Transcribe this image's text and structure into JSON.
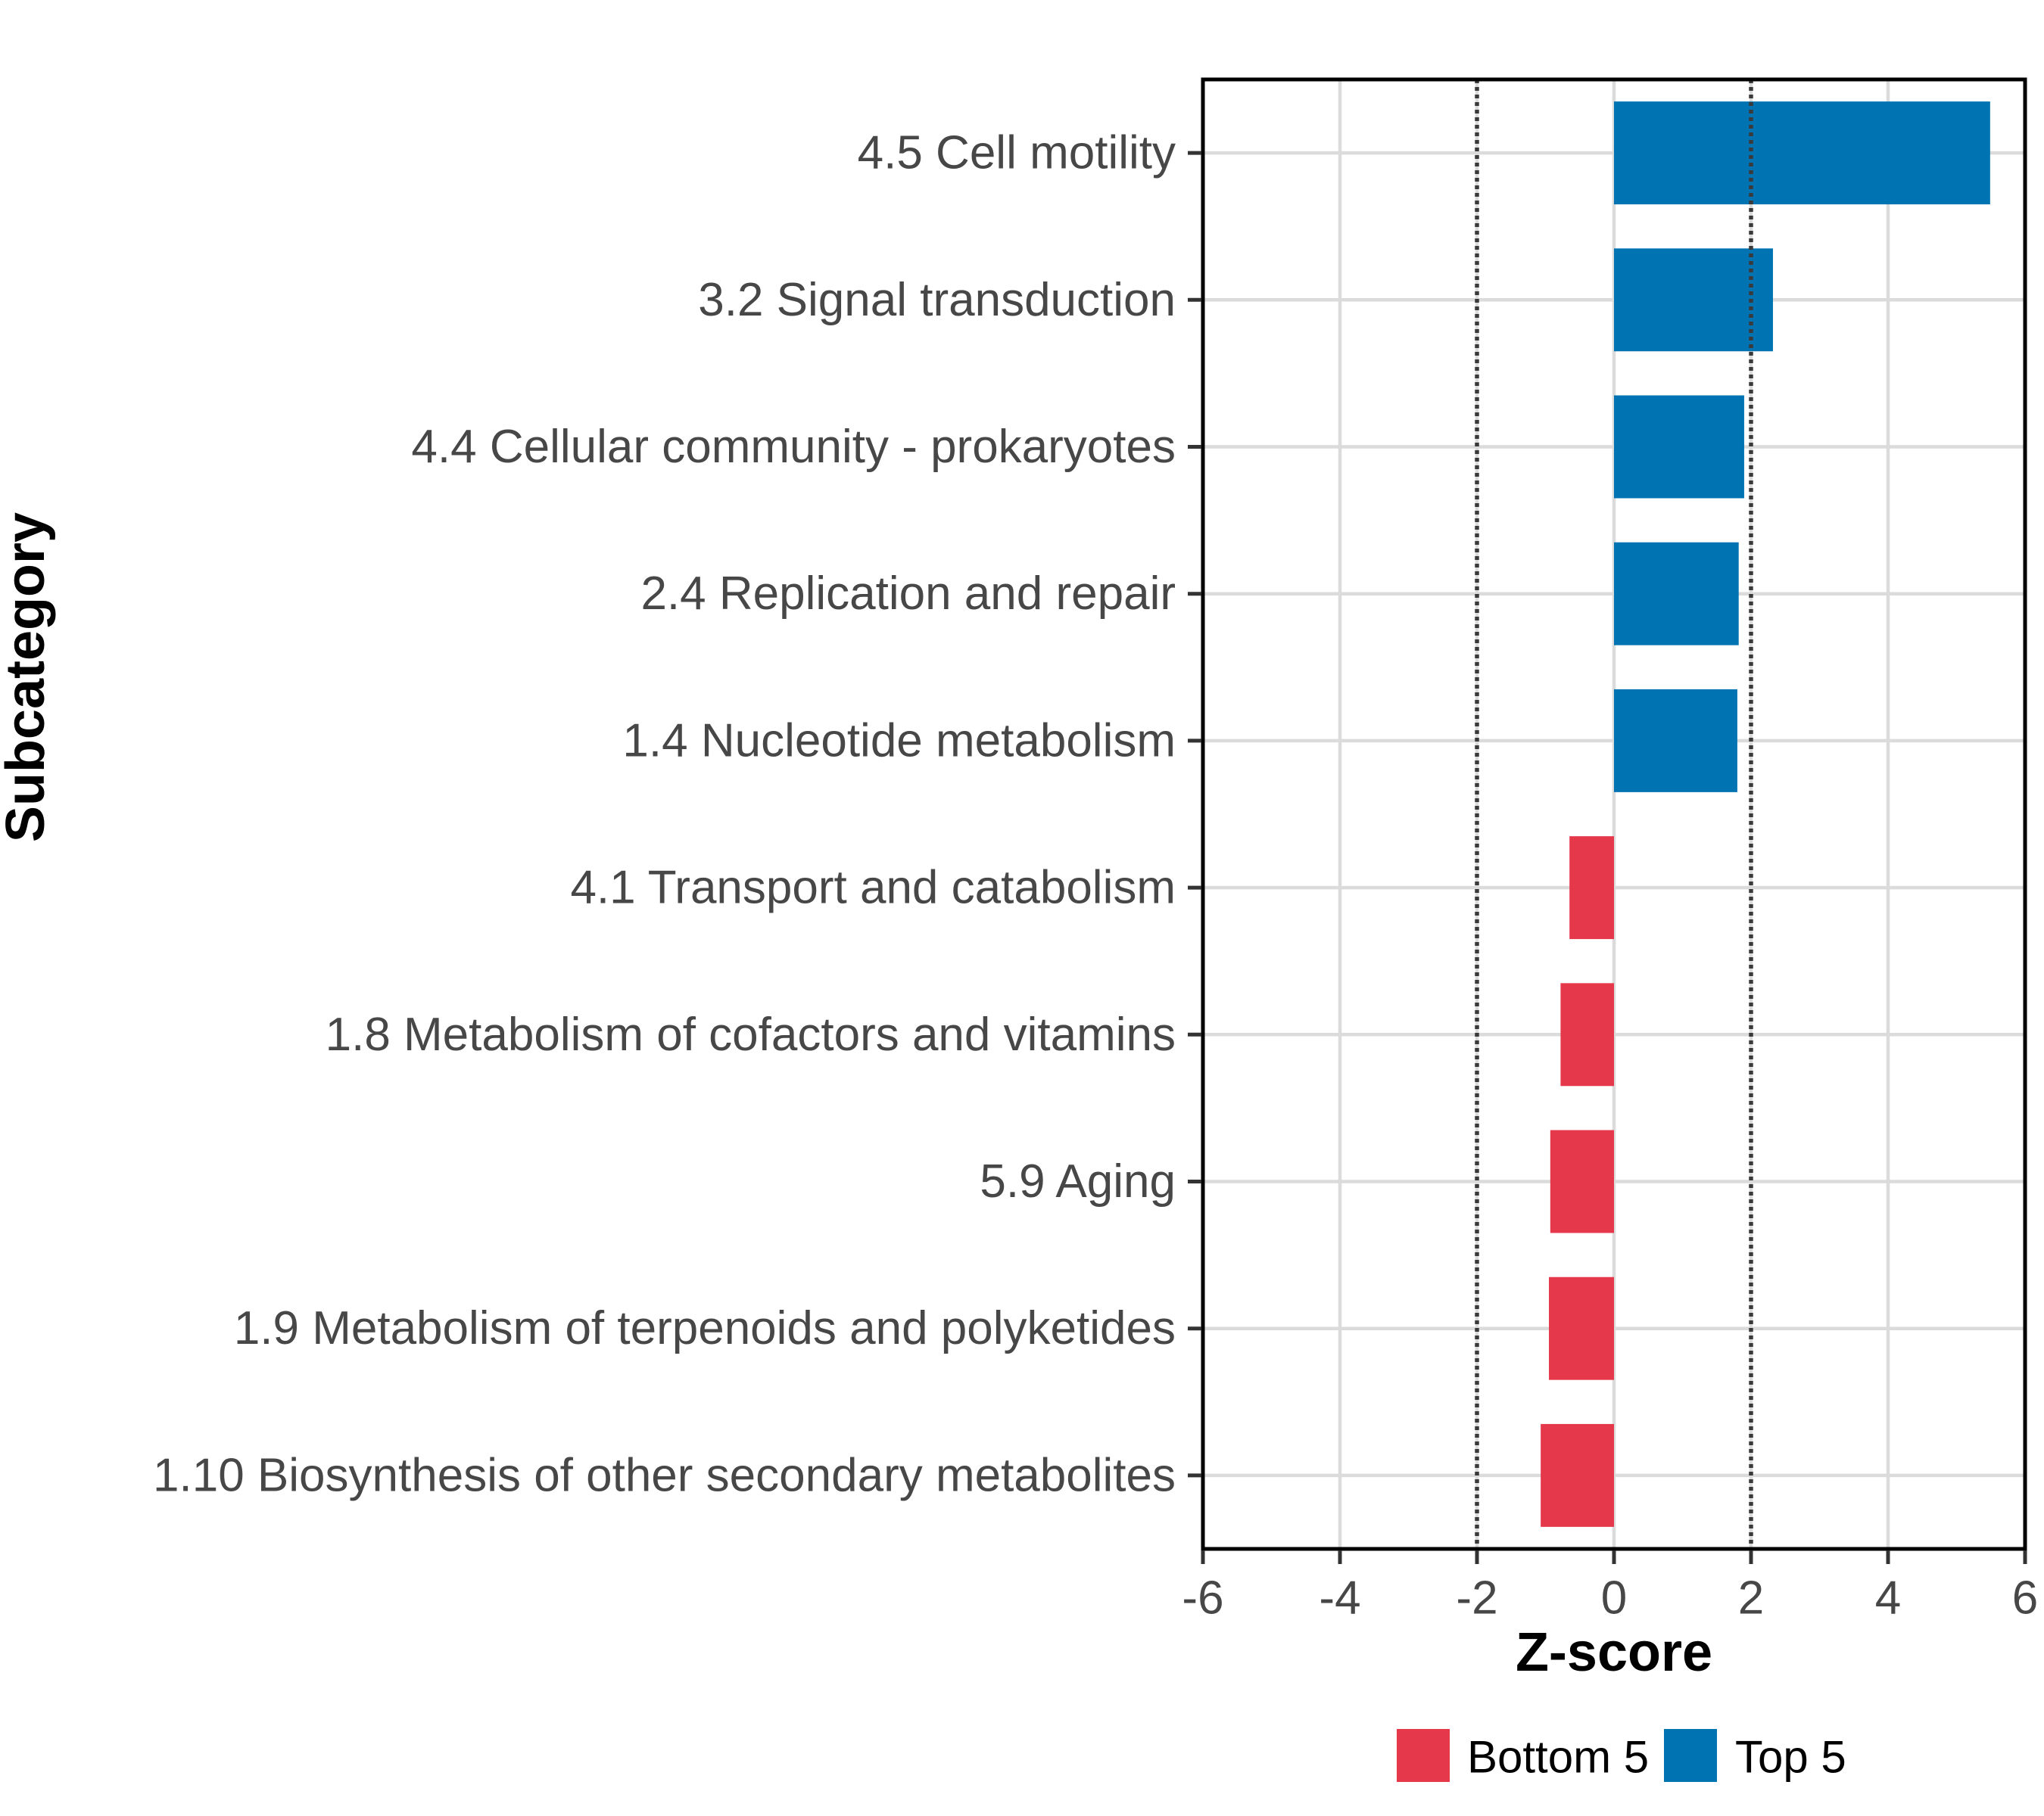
{
  "chart_data": {
    "type": "bar",
    "orientation": "horizontal",
    "title": "",
    "xlabel": "Z-score",
    "ylabel": "Subcategory",
    "xlim": [
      -6,
      6
    ],
    "x_ticks": [
      -6,
      -4,
      -2,
      0,
      2,
      4,
      6
    ],
    "x_tick_labels": [
      "-6",
      "-4",
      "-2",
      "0",
      "2",
      "4",
      "6"
    ],
    "reference_lines": [
      -2,
      2
    ],
    "grid": true,
    "legend_position": "bottom",
    "categories": [
      "4.5 Cell motility",
      "3.2 Signal transduction",
      "4.4 Cellular community - prokaryotes",
      "2.4 Replication and repair",
      "1.4 Nucleotide metabolism",
      "4.1 Transport and catabolism",
      "1.8 Metabolism of cofactors and vitamins",
      "5.9 Aging",
      "1.9 Metabolism of terpenoids and polyketides",
      "1.10 Biosynthesis of other secondary metabolites"
    ],
    "values": [
      5.49,
      2.32,
      1.9,
      1.82,
      1.8,
      -0.65,
      -0.78,
      -0.93,
      -0.95,
      -1.07
    ],
    "groups": [
      "Top 5",
      "Top 5",
      "Top 5",
      "Top 5",
      "Top 5",
      "Bottom 5",
      "Bottom 5",
      "Bottom 5",
      "Bottom 5",
      "Bottom 5"
    ],
    "legend": {
      "entries": [
        {
          "label": "Bottom 5",
          "color": "#E5384A"
        },
        {
          "label": "Top 5",
          "color": "#0073B2"
        }
      ]
    }
  },
  "colors": {
    "positive_bar": "#0073B2",
    "negative_bar": "#E5384A",
    "grid": "#DBDBDB",
    "axis_text": "#474747",
    "title_text": "#000000",
    "reference_line": "#3A3A3A",
    "tick": "#333333",
    "panel_border": "#000000",
    "background": "#FFFFFF"
  }
}
